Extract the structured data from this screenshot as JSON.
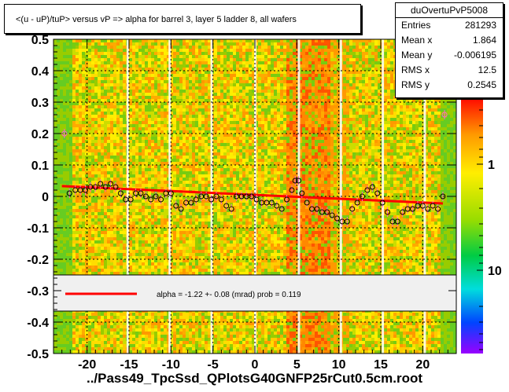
{
  "title": "<(u - uP)/tuP> versus   vP => alpha for barrel 3, layer 5 ladder 8, all wafers",
  "xlabel": "../Pass49_TpcSsd_QPlotsG40GNFP25rCut0.5cm.root",
  "stats": {
    "name": "duOvertuPvP5008",
    "rows": [
      {
        "label": "Entries",
        "value": "281293"
      },
      {
        "label": "Mean x",
        "value": "1.864"
      },
      {
        "label": "Mean y",
        "value": "-0.006195"
      },
      {
        "label": "RMS x",
        "value": "12.5"
      },
      {
        "label": "RMS y",
        "value": "0.2545"
      }
    ]
  },
  "legend": {
    "label": "alpha =   -1.22 +-  0.08 (mrad) prob = 0.119",
    "color": "#ff0000"
  },
  "colors": {
    "marker": "#000000",
    "fit": "#ff0000",
    "profile": "#ff66cc",
    "grid": "#000000"
  },
  "chart_data": {
    "type": "heatmap",
    "xlim": [
      -24,
      24
    ],
    "ylim": [
      -0.5,
      0.5
    ],
    "x_ticks": [
      -20,
      -15,
      -10,
      -5,
      0,
      5,
      10,
      15,
      20
    ],
    "y_ticks": [
      -0.5,
      -0.4,
      -0.3,
      -0.2,
      -0.1,
      0,
      0.1,
      0.2,
      0.3,
      0.4,
      0.5
    ],
    "y_tick_labels": [
      "-0.5",
      "-0.4",
      "-0.3",
      "-0.2",
      "-0.1",
      "0",
      "0.1",
      "0.2",
      "0.3",
      "0.4",
      "0.5"
    ],
    "colorbar_labels": [
      "1",
      "10"
    ],
    "grid": true,
    "fit_line": {
      "slope": -0.00122,
      "intercept": 0.0048
    },
    "profile_points": [
      {
        "x": -22.7,
        "y": 0.2
      },
      {
        "x": -22.1,
        "y": 0.01
      },
      {
        "x": -21.4,
        "y": 0.02
      },
      {
        "x": -20.8,
        "y": 0.02
      },
      {
        "x": -20.2,
        "y": 0.02
      },
      {
        "x": -19.6,
        "y": 0.03
      },
      {
        "x": -19.0,
        "y": 0.03
      },
      {
        "x": -18.4,
        "y": 0.04
      },
      {
        "x": -17.8,
        "y": 0.03
      },
      {
        "x": -17.2,
        "y": 0.04
      },
      {
        "x": -16.6,
        "y": 0.03
      },
      {
        "x": -16.0,
        "y": 0.01
      },
      {
        "x": -15.4,
        "y": -0.01
      },
      {
        "x": -14.8,
        "y": -0.01
      },
      {
        "x": -14.2,
        "y": 0.01
      },
      {
        "x": -13.6,
        "y": 0.01
      },
      {
        "x": -13.0,
        "y": 0.0
      },
      {
        "x": -12.4,
        "y": -0.01
      },
      {
        "x": -11.8,
        "y": 0.0
      },
      {
        "x": -11.2,
        "y": -0.01
      },
      {
        "x": -10.6,
        "y": 0.01
      },
      {
        "x": -10.0,
        "y": 0.01
      },
      {
        "x": -9.4,
        "y": -0.03
      },
      {
        "x": -8.8,
        "y": -0.04
      },
      {
        "x": -8.2,
        "y": -0.02
      },
      {
        "x": -7.6,
        "y": -0.02
      },
      {
        "x": -7.0,
        "y": -0.01
      },
      {
        "x": -6.4,
        "y": 0.0
      },
      {
        "x": -5.8,
        "y": 0.0
      },
      {
        "x": -5.2,
        "y": -0.01
      },
      {
        "x": -4.6,
        "y": 0.0
      },
      {
        "x": -4.0,
        "y": -0.01
      },
      {
        "x": -3.4,
        "y": -0.03
      },
      {
        "x": -2.8,
        "y": -0.04
      },
      {
        "x": -2.2,
        "y": 0.0
      },
      {
        "x": -1.6,
        "y": 0.0
      },
      {
        "x": -1.0,
        "y": 0.0
      },
      {
        "x": -0.4,
        "y": 0.0
      },
      {
        "x": 0.2,
        "y": -0.01
      },
      {
        "x": 0.8,
        "y": -0.02
      },
      {
        "x": 1.4,
        "y": -0.02
      },
      {
        "x": 2.0,
        "y": -0.02
      },
      {
        "x": 2.6,
        "y": -0.03
      },
      {
        "x": 3.2,
        "y": -0.04
      },
      {
        "x": 3.8,
        "y": -0.01
      },
      {
        "x": 4.4,
        "y": 0.02
      },
      {
        "x": 4.8,
        "y": 0.05
      },
      {
        "x": 5.2,
        "y": 0.05
      },
      {
        "x": 5.6,
        "y": 0.01
      },
      {
        "x": 6.2,
        "y": -0.02
      },
      {
        "x": 6.8,
        "y": -0.04
      },
      {
        "x": 7.4,
        "y": -0.04
      },
      {
        "x": 8.0,
        "y": -0.05
      },
      {
        "x": 8.6,
        "y": -0.05
      },
      {
        "x": 9.2,
        "y": -0.06
      },
      {
        "x": 9.8,
        "y": -0.07
      },
      {
        "x": 10.4,
        "y": -0.08
      },
      {
        "x": 11.0,
        "y": -0.08
      },
      {
        "x": 11.6,
        "y": -0.04
      },
      {
        "x": 12.2,
        "y": -0.02
      },
      {
        "x": 12.8,
        "y": 0.0
      },
      {
        "x": 13.4,
        "y": 0.02
      },
      {
        "x": 14.0,
        "y": 0.03
      },
      {
        "x": 14.6,
        "y": 0.01
      },
      {
        "x": 15.2,
        "y": -0.02
      },
      {
        "x": 15.8,
        "y": -0.05
      },
      {
        "x": 16.4,
        "y": -0.08
      },
      {
        "x": 17.0,
        "y": -0.08
      },
      {
        "x": 17.6,
        "y": -0.05
      },
      {
        "x": 18.2,
        "y": -0.04
      },
      {
        "x": 18.8,
        "y": -0.04
      },
      {
        "x": 19.4,
        "y": -0.03
      },
      {
        "x": 20.0,
        "y": -0.03
      },
      {
        "x": 20.6,
        "y": -0.04
      },
      {
        "x": 21.2,
        "y": -0.03
      },
      {
        "x": 21.8,
        "y": -0.04
      },
      {
        "x": 22.4,
        "y": 0.0
      },
      {
        "x": 22.6,
        "y": 0.26
      }
    ]
  }
}
